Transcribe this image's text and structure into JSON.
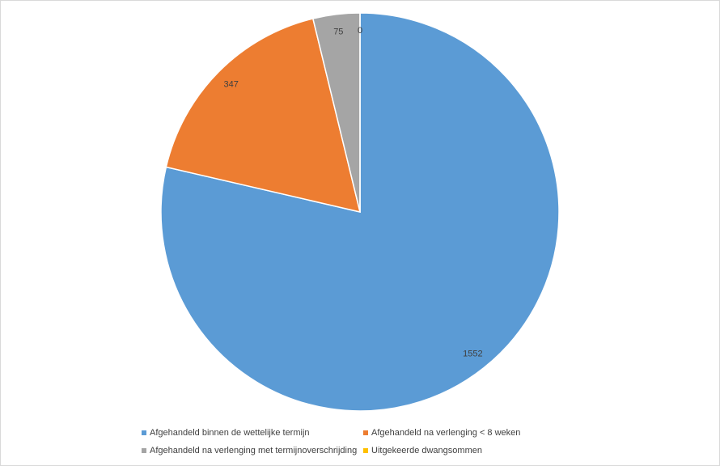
{
  "chart_data": {
    "type": "pie",
    "categories": [
      "Afgehandeld binnen de wettelijke termijn",
      "Afgehandeld na verlenging < 8 weken",
      "Afgehandeld na verlenging met termijnoverschrijding",
      "Uitgekeerde dwangsommen"
    ],
    "values": [
      1552,
      347,
      75,
      0
    ],
    "colors": [
      "#5b9bd5",
      "#ed7d31",
      "#a5a5a5",
      "#ffc000"
    ],
    "legend": "bottom"
  }
}
